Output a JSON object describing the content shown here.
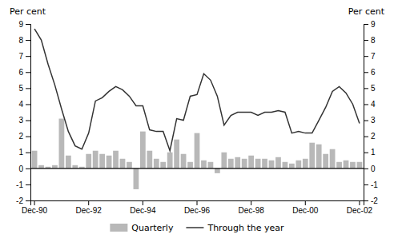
{
  "chart_data": {
    "type": "bar",
    "y_label": "Per cent",
    "y2_label": "Per cent",
    "categories": [
      "Dec-90",
      null,
      null,
      null,
      null,
      null,
      null,
      null,
      "Dec-92",
      null,
      null,
      null,
      null,
      null,
      null,
      null,
      "Dec-94",
      null,
      null,
      null,
      null,
      null,
      null,
      null,
      "Dec-96",
      null,
      null,
      null,
      null,
      null,
      null,
      null,
      "Dec-98",
      null,
      null,
      null,
      null,
      null,
      null,
      null,
      "Dec-00",
      null,
      null,
      null,
      null,
      null,
      null,
      null,
      "Dec-02"
    ],
    "series": [
      {
        "name": "Quarterly",
        "type": "bar",
        "color": "#b8b8b8",
        "values": [
          1.1,
          0.2,
          0.1,
          0.2,
          3.1,
          0.8,
          0.2,
          0.1,
          0.9,
          1.1,
          0.9,
          0.8,
          1.1,
          0.6,
          0.4,
          -1.3,
          2.3,
          1.1,
          0.6,
          0.4,
          1.0,
          1.8,
          0.9,
          0.4,
          2.2,
          0.5,
          0.4,
          -0.3,
          1.0,
          0.6,
          0.7,
          0.6,
          0.8,
          0.6,
          0.6,
          0.5,
          0.7,
          0.4,
          0.3,
          0.5,
          0.6,
          1.6,
          1.5,
          0.9,
          1.2,
          0.4,
          0.5,
          0.4,
          0.4
        ]
      },
      {
        "name": "Through the year",
        "type": "line",
        "color": "#333333",
        "values": [
          8.7,
          8.0,
          6.5,
          5.2,
          3.7,
          2.3,
          1.4,
          1.2,
          2.2,
          4.2,
          4.4,
          4.8,
          5.1,
          4.9,
          4.5,
          3.9,
          3.9,
          2.4,
          2.3,
          2.3,
          1.1,
          3.1,
          3.0,
          4.5,
          4.6,
          5.9,
          5.5,
          4.5,
          2.7,
          3.3,
          3.5,
          3.5,
          3.5,
          3.3,
          3.5,
          3.5,
          3.6,
          3.5,
          2.2,
          2.3,
          2.2,
          2.2,
          3.0,
          3.8,
          4.8,
          5.1,
          4.7,
          4.0,
          2.8
        ]
      }
    ],
    "ylim": [
      -2,
      9
    ],
    "yticks": [
      -2,
      -1,
      0,
      1,
      2,
      3,
      4,
      5,
      6,
      7,
      8,
      9
    ],
    "y2lim": [
      -2,
      9
    ],
    "y2ticks": [
      -2,
      -1,
      0,
      1,
      2,
      3,
      4,
      5,
      6,
      7,
      8,
      9
    ],
    "grid": false,
    "legend": "bottom"
  }
}
